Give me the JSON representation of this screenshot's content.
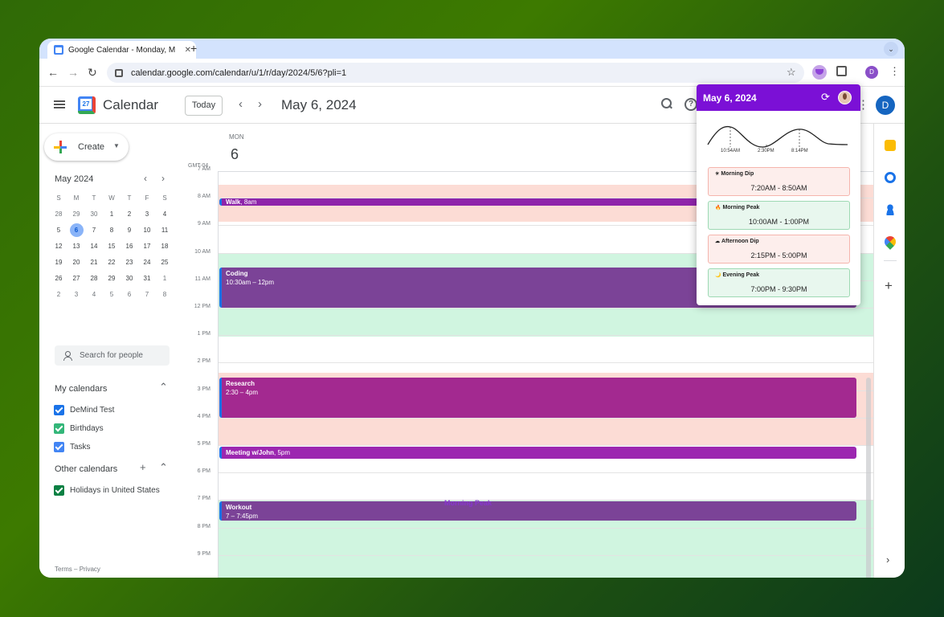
{
  "browser": {
    "tab_title": "Google Calendar - Monday, M",
    "favicon_text": "27",
    "url": "calendar.google.com/calendar/u/1/r/day/2024/5/6?pli=1",
    "profile_initial": "D"
  },
  "header": {
    "app_title": "Calendar",
    "today_label": "Today",
    "date_title": "May 6, 2024",
    "avatar_initial": "D"
  },
  "sidebar": {
    "create_label": "Create",
    "mini_month": {
      "title": "May 2024",
      "weekdays": [
        "S",
        "M",
        "T",
        "W",
        "T",
        "F",
        "S"
      ],
      "weeks": [
        [
          "28",
          "29",
          "30",
          "1",
          "2",
          "3",
          "4"
        ],
        [
          "5",
          "6",
          "7",
          "8",
          "9",
          "10",
          "11"
        ],
        [
          "12",
          "13",
          "14",
          "15",
          "16",
          "17",
          "18"
        ],
        [
          "19",
          "20",
          "21",
          "22",
          "23",
          "24",
          "25"
        ],
        [
          "26",
          "27",
          "28",
          "29",
          "30",
          "31",
          "1"
        ],
        [
          "2",
          "3",
          "4",
          "5",
          "6",
          "7",
          "8"
        ]
      ],
      "selected": "6"
    },
    "search_people_placeholder": "Search for people",
    "my_calendars_title": "My calendars",
    "my_calendars": [
      {
        "label": "DeMind Test",
        "color": "#1a73e8"
      },
      {
        "label": "Birthdays",
        "color": "#33b679"
      },
      {
        "label": "Tasks",
        "color": "#4285f4"
      }
    ],
    "other_calendars_title": "Other calendars",
    "other_calendars": [
      {
        "label": "Holidays in United States",
        "color": "#0b8043"
      }
    ],
    "terms": "Terms",
    "sep": "–",
    "privacy": "Privacy"
  },
  "day": {
    "weekday": "MON",
    "daynum": "6",
    "timezone": "GMT-04",
    "hours": [
      "7 AM",
      "8 AM",
      "9 AM",
      "10 AM",
      "11 AM",
      "12 PM",
      "1 PM",
      "2 PM",
      "3 PM",
      "4 PM",
      "5 PM",
      "6 PM",
      "7 PM",
      "8 PM",
      "9 PM"
    ],
    "events": [
      {
        "title": "Walk",
        "time": ", 8am",
        "color": "#8e24aa"
      },
      {
        "title": "Coding",
        "time": "10:30am – 12pm",
        "color": "#7b4397"
      },
      {
        "title": "Research",
        "time": "2:30 – 4pm",
        "color": "#a32990"
      },
      {
        "title": "Meeting w/John",
        "time": ", 5pm",
        "color": "#9c27b0"
      },
      {
        "title": "Workout",
        "time": "7 – 7:45pm",
        "color": "#7b4397"
      }
    ],
    "watermark": "Morning Peak"
  },
  "popup": {
    "title": "May 6, 2024",
    "curve_labels": [
      "10:54AM",
      "2:30PM",
      "8:14PM"
    ],
    "periods": [
      {
        "icon": "☀",
        "name": "Morning Dip",
        "time": "7:20AM - 8:50AM",
        "kind": "dip"
      },
      {
        "icon": "🔥",
        "name": "Morning Peak",
        "time": "10:00AM - 1:00PM",
        "kind": "peak"
      },
      {
        "icon": "☁",
        "name": "Afternoon Dip",
        "time": "2:15PM - 5:00PM",
        "kind": "dip"
      },
      {
        "icon": "🌙",
        "name": "Evening Peak",
        "time": "7:00PM - 9:30PM",
        "kind": "peak"
      }
    ]
  },
  "colors": {
    "dip_band": "#fcdcd5",
    "peak_band": "#d0f5e0",
    "popup_header": "#7b10d6"
  }
}
